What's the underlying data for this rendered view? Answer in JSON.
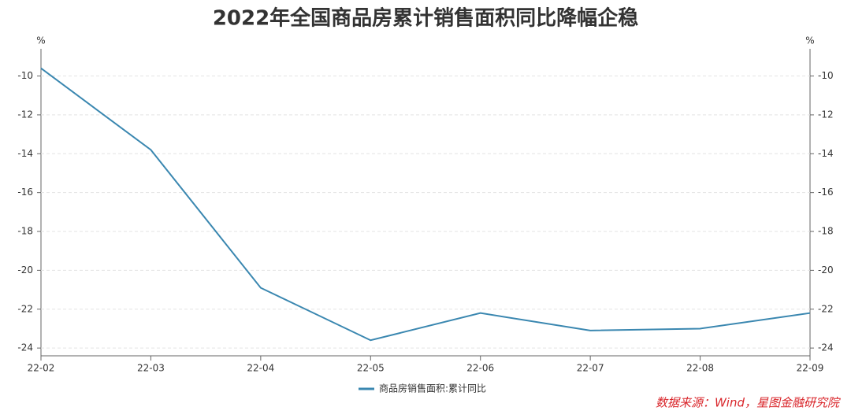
{
  "chart_data": {
    "type": "line",
    "title": "2022年全国商品房累计销售面积同比降幅企稳",
    "y_unit": "%",
    "y2_unit": "%",
    "categories": [
      "22-02",
      "22-03",
      "22-04",
      "22-05",
      "22-06",
      "22-07",
      "22-08",
      "22-09"
    ],
    "series": [
      {
        "name": "商品房销售面积:累计同比",
        "color": "#3a87b0",
        "values": [
          -9.6,
          -13.8,
          -20.9,
          -23.6,
          -22.2,
          -23.1,
          -23.0,
          -22.2
        ]
      }
    ],
    "ylim": [
      -24.4,
      -8.6
    ],
    "yticks": [
      -24,
      -22,
      -20,
      -18,
      -16,
      -14,
      -12,
      -10
    ],
    "y2lim": [
      -24.4,
      -8.6
    ],
    "y2ticks": [
      -24,
      -22,
      -20,
      -18,
      -16,
      -14,
      -12,
      -10
    ],
    "grid": true,
    "legend": "bottom",
    "source": "数据来源：Wind，星图金融研究院"
  }
}
